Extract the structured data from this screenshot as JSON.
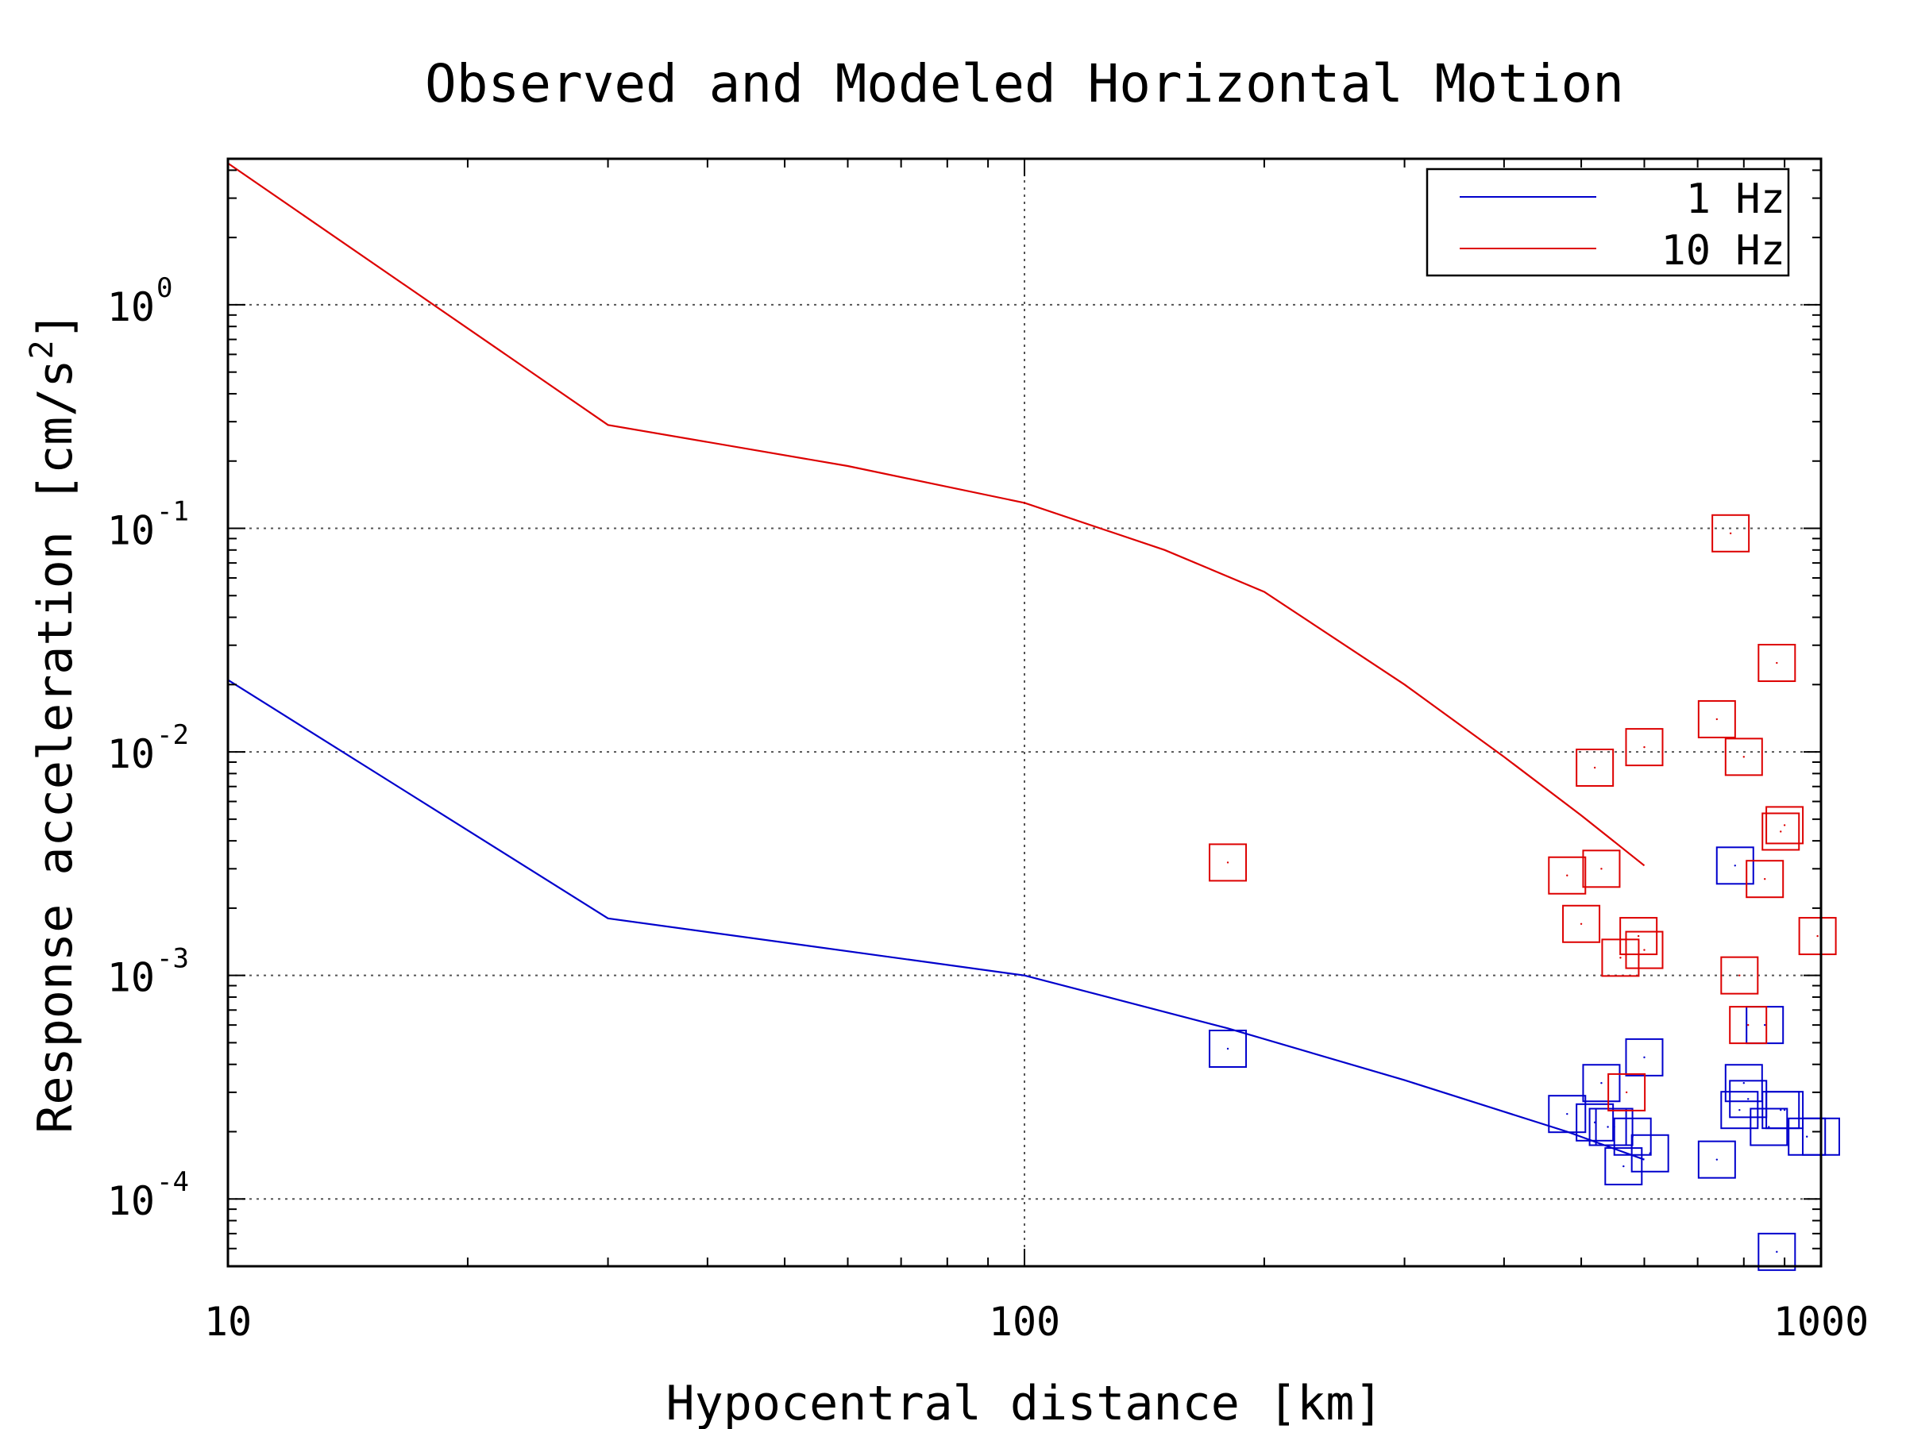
{
  "chart_data": {
    "type": "scatter",
    "title": "Observed and Modeled Horizontal Motion",
    "xlabel": "Hypocentral distance [km]",
    "ylabel": "Response acceleration [cm/s²]",
    "ylabel_base": "Response acceleration [cm/s",
    "ylabel_sup": "2",
    "ylabel_end": "]",
    "x_scale": "log",
    "y_scale": "log",
    "xlim": [
      10,
      1000
    ],
    "ylim": [
      5e-05,
      4.5
    ],
    "grid": "dotted at major ticks",
    "legend_position": "top-right",
    "x_ticks": [
      {
        "value": 10,
        "label": "10"
      },
      {
        "value": 100,
        "label": "100"
      },
      {
        "value": 1000,
        "label": "1000"
      }
    ],
    "y_ticks": [
      {
        "value": 1,
        "base": "10",
        "exp": "0"
      },
      {
        "value": 0.1,
        "base": "10",
        "exp": "-1"
      },
      {
        "value": 0.01,
        "base": "10",
        "exp": "-2"
      },
      {
        "value": 0.001,
        "base": "10",
        "exp": "-3"
      },
      {
        "value": 0.0001,
        "base": "10",
        "exp": "-4"
      }
    ],
    "series": [
      {
        "name": "1 Hz",
        "color": "#0000cc",
        "line": {
          "x": [
            10,
            30,
            100,
            180,
            300,
            480,
            600
          ],
          "y": [
            0.021,
            0.0018,
            0.001,
            0.00058,
            0.00034,
            0.0002,
            0.00015
          ]
        },
        "points": {
          "x": [
            180,
            480,
            520,
            530,
            540,
            550,
            565,
            580,
            600,
            610,
            740,
            780,
            790,
            800,
            810,
            850,
            860,
            880,
            890,
            900,
            960,
            1000
          ],
          "y": [
            0.00047,
            0.00024,
            0.00022,
            0.00033,
            0.00021,
            0.00021,
            0.00014,
            0.00019,
            0.00043,
            0.00016,
            0.00015,
            0.0031,
            0.00025,
            0.00033,
            0.00028,
            0.0006,
            0.00021,
            5.8e-05,
            0.00025,
            0.00025,
            0.00019,
            0.00019
          ]
        }
      },
      {
        "name": "10 Hz",
        "color": "#dd0000",
        "line": {
          "x": [
            10,
            30,
            60,
            100,
            150,
            200,
            300,
            400,
            500,
            600
          ],
          "y": [
            4.3,
            0.29,
            0.19,
            0.13,
            0.08,
            0.052,
            0.02,
            0.0095,
            0.0052,
            0.0031
          ]
        },
        "points": {
          "x": [
            180,
            480,
            500,
            520,
            530,
            560,
            570,
            590,
            600,
            600,
            740,
            770,
            790,
            800,
            810,
            850,
            880,
            890,
            900,
            990
          ],
          "y": [
            0.0032,
            0.0028,
            0.0017,
            0.0085,
            0.003,
            0.0012,
            0.0003,
            0.0015,
            0.0105,
            0.0013,
            0.014,
            0.095,
            0.001,
            0.0095,
            0.0006,
            0.0027,
            0.025,
            0.0044,
            0.0047,
            0.0015
          ]
        }
      }
    ]
  }
}
